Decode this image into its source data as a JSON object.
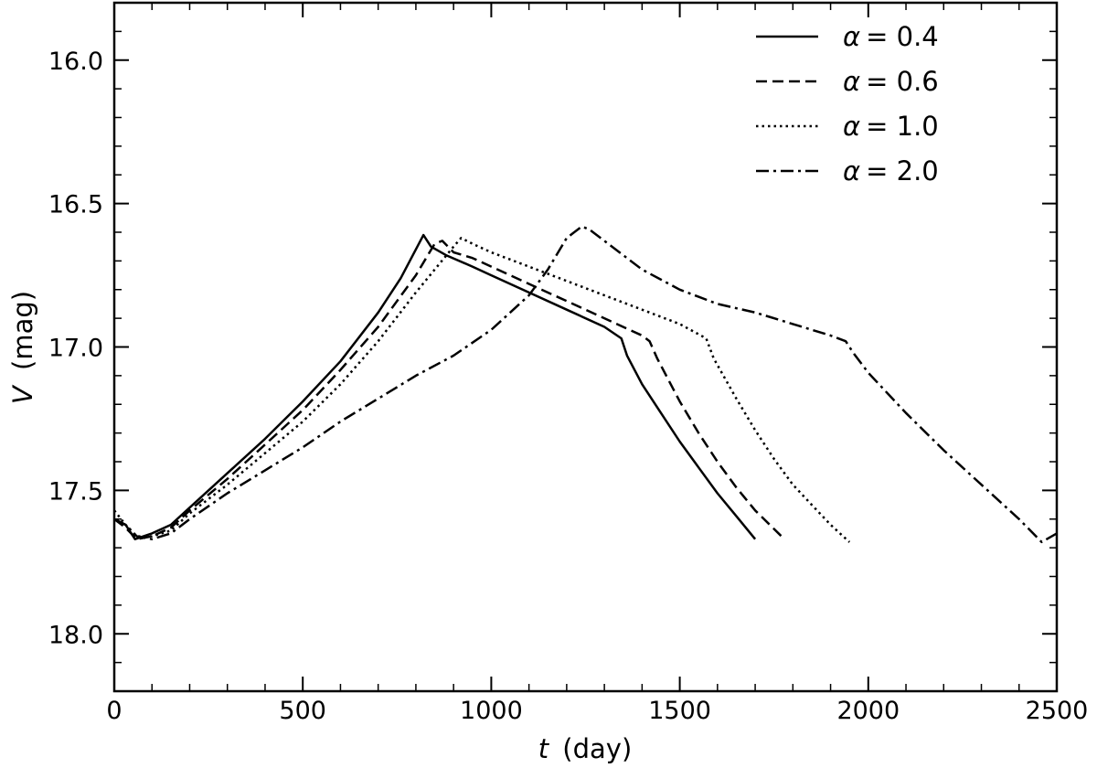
{
  "chart_data": {
    "type": "line",
    "xlabel_var": "t",
    "xlabel_unit": "(day)",
    "ylabel_var": "V",
    "ylabel_unit": "(mag)",
    "xlim": [
      0,
      2500
    ],
    "ylim": [
      18.2,
      15.8
    ],
    "y_inverted": true,
    "x_ticks": [
      0,
      500,
      1000,
      1500,
      2000,
      2500
    ],
    "x_tick_labels": [
      "0",
      "500",
      "1000",
      "1500",
      "2000",
      "2500"
    ],
    "y_ticks": [
      16.0,
      16.5,
      17.0,
      17.5,
      18.0
    ],
    "y_tick_labels": [
      "16.0",
      "16.5",
      "17.0",
      "17.5",
      "18.0"
    ],
    "grid": false,
    "legend_position": "top-right",
    "series": [
      {
        "name": "α = 0.4",
        "legend_symbol": "α",
        "legend_value": "= 0.4",
        "style": "solid",
        "x": [
          0,
          30,
          55,
          100,
          150,
          200,
          300,
          400,
          500,
          600,
          700,
          760,
          820,
          840,
          880,
          950,
          1000,
          1100,
          1200,
          1300,
          1345,
          1360,
          1400,
          1450,
          1500,
          1550,
          1600,
          1650,
          1700
        ],
        "y": [
          17.6,
          17.62,
          17.67,
          17.65,
          17.62,
          17.56,
          17.44,
          17.32,
          17.19,
          17.05,
          16.88,
          16.76,
          16.61,
          16.65,
          16.68,
          16.72,
          16.75,
          16.81,
          16.87,
          16.93,
          16.97,
          17.03,
          17.13,
          17.23,
          17.33,
          17.42,
          17.51,
          17.59,
          17.67
        ]
      },
      {
        "name": "α = 0.6",
        "legend_symbol": "α",
        "legend_value": "= 0.6",
        "style": "dashed",
        "x": [
          0,
          30,
          60,
          100,
          150,
          200,
          300,
          400,
          500,
          600,
          700,
          800,
          850,
          870,
          900,
          950,
          1000,
          1100,
          1200,
          1300,
          1400,
          1420,
          1440,
          1500,
          1550,
          1600,
          1650,
          1700,
          1770
        ],
        "y": [
          17.6,
          17.63,
          17.67,
          17.66,
          17.63,
          17.57,
          17.46,
          17.34,
          17.22,
          17.08,
          16.93,
          16.75,
          16.64,
          16.63,
          16.67,
          16.69,
          16.72,
          16.78,
          16.84,
          16.9,
          16.96,
          16.98,
          17.04,
          17.19,
          17.3,
          17.4,
          17.49,
          17.57,
          17.66
        ]
      },
      {
        "name": "α = 1.0",
        "legend_symbol": "α",
        "legend_value": "= 1.0",
        "style": "dotted",
        "x": [
          0,
          30,
          60,
          100,
          150,
          200,
          300,
          400,
          500,
          600,
          700,
          800,
          900,
          920,
          950,
          1000,
          1100,
          1200,
          1300,
          1400,
          1500,
          1570,
          1590,
          1650,
          1700,
          1750,
          1800,
          1850,
          1900,
          1950
        ],
        "y": [
          17.57,
          17.62,
          17.66,
          17.66,
          17.64,
          17.58,
          17.48,
          17.37,
          17.26,
          17.13,
          16.98,
          16.81,
          16.65,
          16.62,
          16.64,
          16.67,
          16.72,
          16.77,
          16.82,
          16.87,
          16.92,
          16.97,
          17.04,
          17.18,
          17.29,
          17.39,
          17.48,
          17.55,
          17.62,
          17.68
        ]
      },
      {
        "name": "α = 2.0",
        "legend_symbol": "α",
        "legend_value": "= 2.0",
        "style": "dashdot",
        "x": [
          0,
          30,
          60,
          100,
          150,
          200,
          300,
          400,
          500,
          600,
          700,
          800,
          900,
          1000,
          1100,
          1150,
          1200,
          1240,
          1260,
          1300,
          1400,
          1500,
          1600,
          1700,
          1800,
          1900,
          1940,
          1960,
          2000,
          2100,
          2200,
          2300,
          2400,
          2460,
          2500
        ],
        "y": [
          17.6,
          17.62,
          17.66,
          17.67,
          17.65,
          17.6,
          17.51,
          17.43,
          17.35,
          17.26,
          17.18,
          17.1,
          17.03,
          16.94,
          16.82,
          16.73,
          16.62,
          16.58,
          16.59,
          16.63,
          16.73,
          16.8,
          16.85,
          16.88,
          16.92,
          16.96,
          16.98,
          17.02,
          17.09,
          17.23,
          17.36,
          17.48,
          17.6,
          17.68,
          17.65
        ]
      }
    ]
  }
}
